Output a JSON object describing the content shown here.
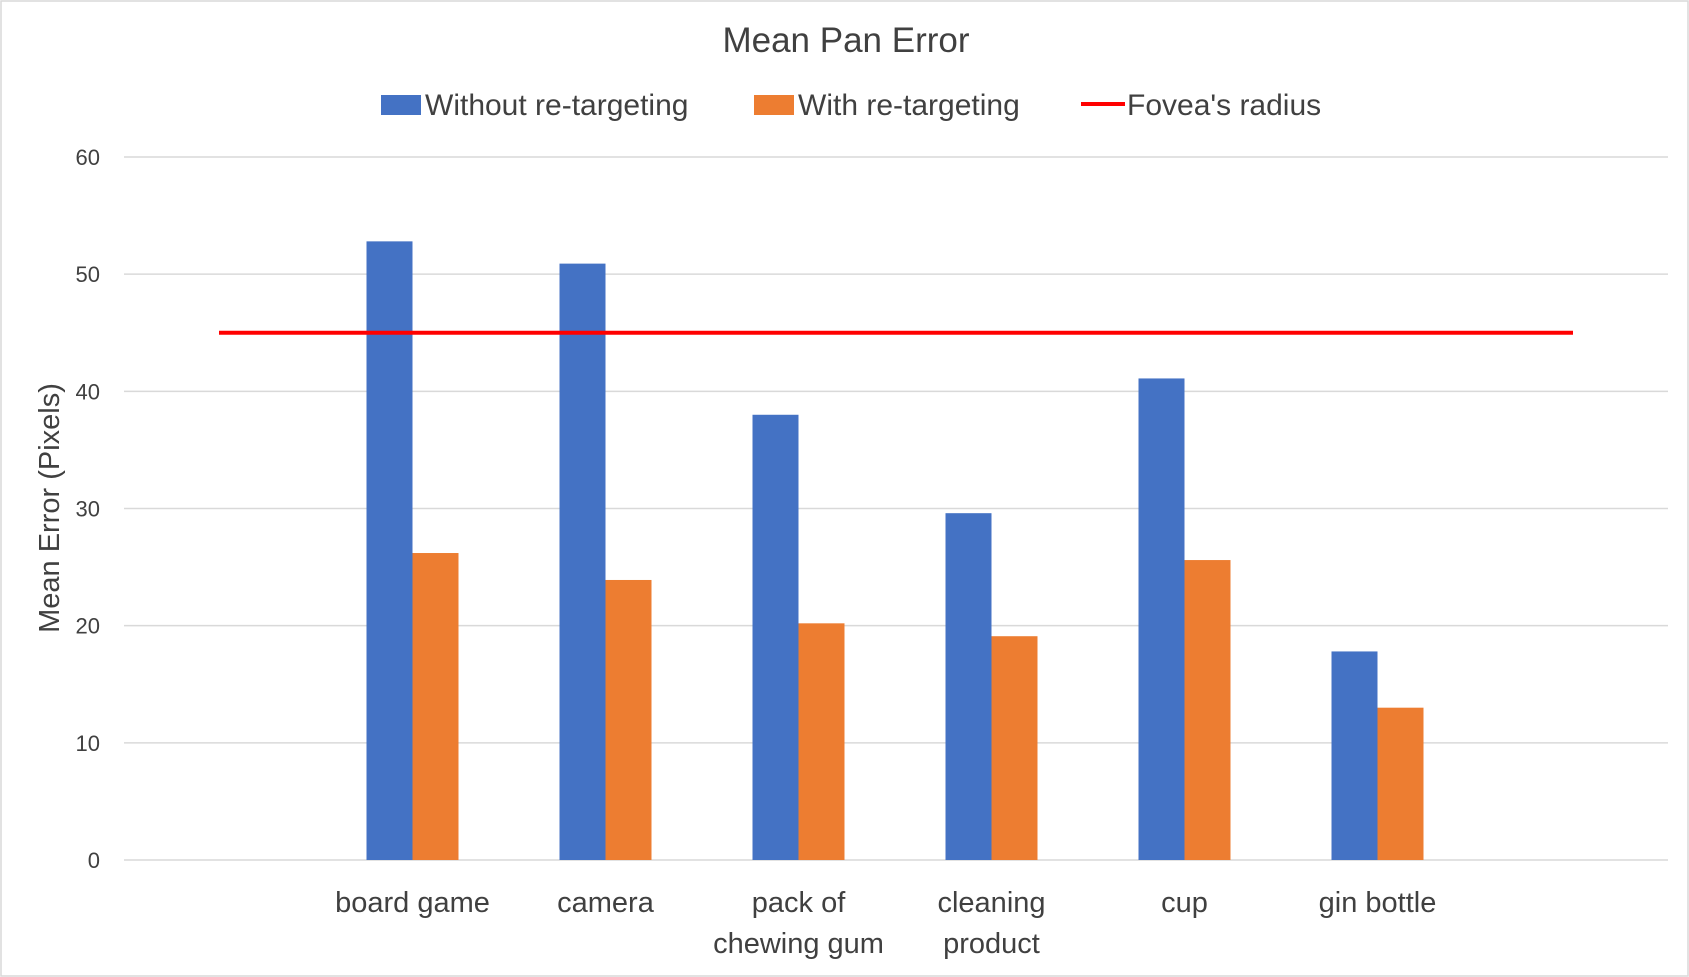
{
  "chart_data": {
    "type": "bar",
    "title": "Mean Pan Error",
    "xlabel": "",
    "ylabel": "Mean Error (Pixels)",
    "ylim": [
      0,
      60
    ],
    "yticks": [
      "0",
      "10",
      "20",
      "30",
      "40",
      "50",
      "60"
    ],
    "grid": true,
    "legend_position": "top",
    "categories": [
      [
        "board game"
      ],
      [
        "camera"
      ],
      [
        "pack of",
        "chewing gum"
      ],
      [
        "cleaning",
        "product"
      ],
      [
        "cup"
      ],
      [
        "gin bottle"
      ]
    ],
    "series": [
      {
        "name": "Without re-targeting",
        "color": "#4472c4",
        "values": [
          52.8,
          50.9,
          38.0,
          29.6,
          41.1,
          17.8
        ]
      },
      {
        "name": "With re-targeting",
        "color": "#ed7d31",
        "values": [
          26.2,
          23.9,
          20.2,
          19.1,
          25.6,
          13.0
        ]
      }
    ],
    "reference_line": {
      "name": "Fovea's radius",
      "color": "#ff0000",
      "value": 45
    }
  }
}
